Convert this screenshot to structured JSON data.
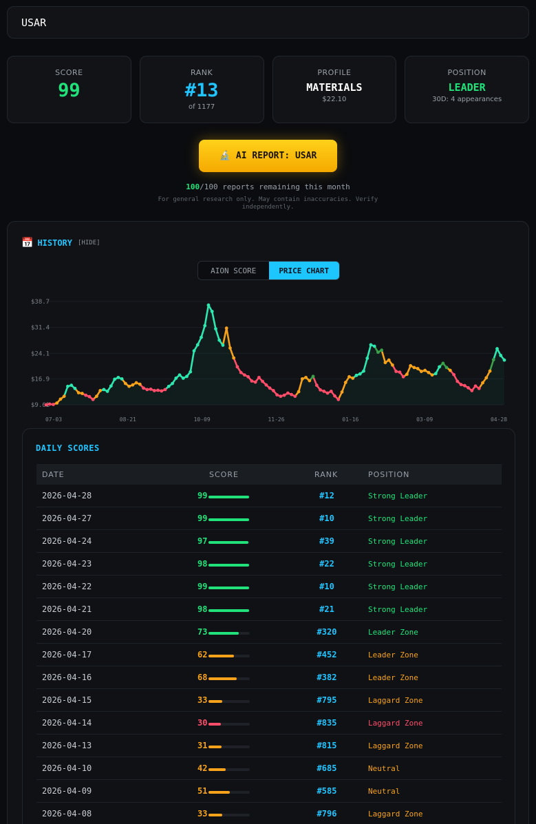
{
  "header": {
    "ticker": "USAR"
  },
  "cards": {
    "score": {
      "label": "SCORE",
      "value": "99"
    },
    "rank": {
      "label": "RANK",
      "value": "#13",
      "sub": "of 1177"
    },
    "profile": {
      "label": "PROFILE",
      "value": "MATERIALS",
      "sub": "$22.10"
    },
    "position": {
      "label": "POSITION",
      "value": "LEADER",
      "sub": "30D: 4 appearances"
    }
  },
  "ai_report": {
    "icon": "microscope-icon",
    "label": "AI REPORT: USAR"
  },
  "reports": {
    "remaining": "100",
    "text": "/100 reports remaining this month"
  },
  "disclaimer": "For general research only. May contain inaccuracies. Verify independently.",
  "history": {
    "title": "HISTORY",
    "hide_label": "[HIDE]",
    "toggle": {
      "left": "AION SCORE",
      "right": "PRICE CHART",
      "active": "PRICE CHART"
    }
  },
  "colors": {
    "leader": "#21e27a",
    "mid": "#f7a21b",
    "laggard": "#ff4d6a",
    "accent": "#21c4ff",
    "cyan_line": "#2ee6b0"
  },
  "chart_data": {
    "type": "line",
    "ylabel": "",
    "yticks": [
      "$38.7",
      "$31.4",
      "$24.1",
      "$16.9",
      "$9.61"
    ],
    "ytick_values": [
      38.7,
      31.4,
      24.1,
      16.9,
      9.61
    ],
    "xticks": [
      "07-03",
      "08-21",
      "10-09",
      "11-26",
      "01-16",
      "03-09",
      "04-28"
    ],
    "ylim": [
      9.61,
      38.7
    ],
    "grid": true,
    "series": [
      {
        "values": [
          9.6,
          9.8,
          9.7,
          10.1,
          11.2,
          12.0,
          14.8,
          15.1,
          14.2,
          13.0,
          12.8,
          12.3,
          11.9,
          11.1,
          12.0,
          13.6,
          13.9,
          13.4,
          14.9,
          16.8,
          17.3,
          16.9,
          15.6,
          14.8,
          15.2,
          15.8,
          15.4,
          14.3,
          13.9,
          14.0,
          13.6,
          13.7,
          13.5,
          13.9,
          14.8,
          15.6,
          17.1,
          18.0,
          17.1,
          17.6,
          18.9,
          24.8,
          26.5,
          28.6,
          31.9,
          37.7,
          35.9,
          31.0,
          27.8,
          26.4,
          31.2,
          25.6,
          22.8,
          20.3,
          18.7,
          18.0,
          17.5,
          16.3,
          16.0,
          17.3,
          16.2,
          15.2,
          14.3,
          13.6,
          12.4,
          12.0,
          12.3,
          12.9,
          12.5,
          12.0,
          13.3,
          16.9,
          17.3,
          16.4,
          17.6,
          15.1,
          13.8,
          13.4,
          12.9,
          13.4,
          12.1,
          11.1,
          13.2,
          15.9,
          17.5,
          17.1,
          17.9,
          18.3,
          19.1,
          22.7,
          26.5,
          26.1,
          24.4,
          25.0,
          21.5,
          22.2,
          20.8,
          19.0,
          18.8,
          17.5,
          18.2,
          20.6,
          20.1,
          19.8,
          19.0,
          19.3,
          18.7,
          18.0,
          18.4,
          20.3,
          21.3,
          20.1,
          19.3,
          18.1,
          16.2,
          15.3,
          15.0,
          14.4,
          13.6,
          14.9,
          14.2,
          15.8,
          17.2,
          19.1,
          22.3,
          25.4,
          23.5,
          22.2
        ],
        "colors": [
          "lag",
          "lag",
          "lag",
          "mid",
          "mid",
          "mid",
          "lead",
          "lead",
          "lead",
          "mid",
          "mid",
          "lag",
          "lag",
          "lag",
          "mid",
          "mid",
          "lead",
          "lead",
          "lead",
          "lead",
          "lead",
          "lead",
          "mid",
          "mid",
          "mid",
          "mid",
          "mid",
          "lag",
          "lag",
          "lag",
          "lag",
          "lag",
          "lag",
          "lag",
          "lead",
          "lead",
          "lead",
          "lead",
          "lead",
          "lead",
          "lead",
          "lead",
          "lead",
          "lead",
          "lead",
          "lead",
          "lead",
          "lead",
          "lead",
          "lead",
          "mid",
          "mid",
          "mid",
          "lag",
          "lag",
          "lag",
          "lag",
          "lag",
          "lag",
          "lag",
          "lag",
          "lag",
          "lag",
          "lag",
          "lag",
          "lag",
          "lag",
          "lag",
          "lag",
          "lag",
          "mid",
          "mid",
          "mid",
          "mid",
          "green",
          "lag",
          "lag",
          "lag",
          "lag",
          "lag",
          "lag",
          "lag",
          "mid",
          "mid",
          "mid",
          "mid",
          "lead",
          "lead",
          "lead",
          "lead",
          "lead",
          "lead",
          "green",
          "green",
          "mid",
          "mid",
          "mid",
          "lag",
          "lag",
          "lag",
          "mid",
          "mid",
          "mid",
          "mid",
          "mid",
          "mid",
          "mid",
          "mid",
          "lead",
          "lead",
          "green",
          "green",
          "mid",
          "lag",
          "lag",
          "lag",
          "lag",
          "lag",
          "lag",
          "lag",
          "lag",
          "mid",
          "mid",
          "mid",
          "green",
          "lead",
          "lead",
          "lead"
        ]
      }
    ]
  },
  "daily": {
    "title": "DAILY SCORES",
    "columns": [
      "DATE",
      "SCORE",
      "RANK",
      "POSITION"
    ],
    "rows": [
      {
        "date": "2026-04-28",
        "score": "99",
        "pct": 99,
        "rank": "#12",
        "position": "Strong Leader",
        "tone": "lead"
      },
      {
        "date": "2026-04-27",
        "score": "99",
        "pct": 99,
        "rank": "#10",
        "position": "Strong Leader",
        "tone": "lead"
      },
      {
        "date": "2026-04-24",
        "score": "97",
        "pct": 97,
        "rank": "#39",
        "position": "Strong Leader",
        "tone": "lead"
      },
      {
        "date": "2026-04-23",
        "score": "98",
        "pct": 98,
        "rank": "#22",
        "position": "Strong Leader",
        "tone": "lead"
      },
      {
        "date": "2026-04-22",
        "score": "99",
        "pct": 99,
        "rank": "#10",
        "position": "Strong Leader",
        "tone": "lead"
      },
      {
        "date": "2026-04-21",
        "score": "98",
        "pct": 98,
        "rank": "#21",
        "position": "Strong Leader",
        "tone": "lead"
      },
      {
        "date": "2026-04-20",
        "score": "73",
        "pct": 73,
        "rank": "#320",
        "position": "Leader Zone",
        "tone": "lead"
      },
      {
        "date": "2026-04-17",
        "score": "62",
        "pct": 62,
        "rank": "#452",
        "position": "Leader Zone",
        "tone": "mid"
      },
      {
        "date": "2026-04-16",
        "score": "68",
        "pct": 68,
        "rank": "#382",
        "position": "Leader Zone",
        "tone": "mid"
      },
      {
        "date": "2026-04-15",
        "score": "33",
        "pct": 33,
        "rank": "#795",
        "position": "Laggard Zone",
        "tone": "mid"
      },
      {
        "date": "2026-04-14",
        "score": "30",
        "pct": 30,
        "rank": "#835",
        "position": "Laggard Zone",
        "tone": "lag"
      },
      {
        "date": "2026-04-13",
        "score": "31",
        "pct": 31,
        "rank": "#815",
        "position": "Laggard Zone",
        "tone": "mid"
      },
      {
        "date": "2026-04-10",
        "score": "42",
        "pct": 42,
        "rank": "#685",
        "position": "Neutral",
        "tone": "mid"
      },
      {
        "date": "2026-04-09",
        "score": "51",
        "pct": 51,
        "rank": "#585",
        "position": "Neutral",
        "tone": "mid"
      },
      {
        "date": "2026-04-08",
        "score": "33",
        "pct": 33,
        "rank": "#796",
        "position": "Laggard Zone",
        "tone": "mid"
      }
    ]
  }
}
